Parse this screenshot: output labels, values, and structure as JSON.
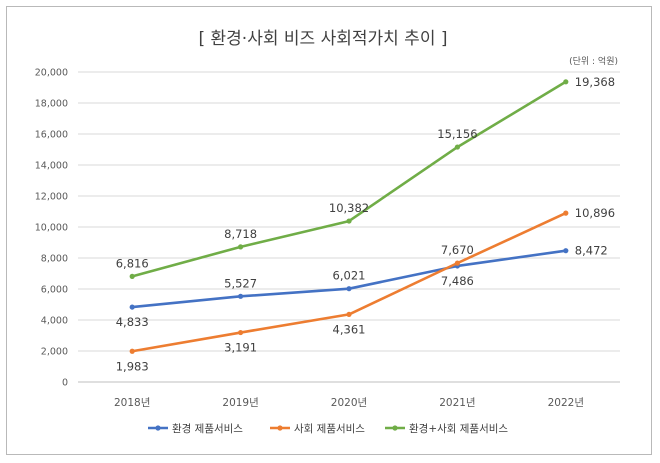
{
  "chart_data": {
    "type": "line",
    "title": "[ 환경·사회 비즈 사회적가치 추이 ]",
    "unit_note": "(단위 : 억원)",
    "categories": [
      "2018년",
      "2019년",
      "2020년",
      "2021년",
      "2022년"
    ],
    "ylim": [
      0,
      20000
    ],
    "yticks": [
      0,
      2000,
      4000,
      6000,
      8000,
      10000,
      12000,
      14000,
      16000,
      18000,
      20000
    ],
    "ytick_labels": [
      "0",
      "2,000",
      "4,000",
      "6,000",
      "8,000",
      "10,000",
      "12,000",
      "14,000",
      "16,000",
      "18,000",
      "20,000"
    ],
    "grid": true,
    "legend_position": "bottom",
    "series": [
      {
        "name": "환경 제품서비스",
        "color": "#4472c4",
        "values": [
          4833,
          5527,
          6021,
          7486,
          8472
        ],
        "labels": [
          "4,833",
          "5,527",
          "6,021",
          "7,486",
          "8,472"
        ],
        "label_pos": [
          "below",
          "above",
          "above",
          "below",
          "right"
        ]
      },
      {
        "name": "사회 제품서비스",
        "color": "#ed7d31",
        "values": [
          1983,
          3191,
          4361,
          7670,
          10896
        ],
        "labels": [
          "1,983",
          "3,191",
          "4,361",
          "7,670",
          "10,896"
        ],
        "label_pos": [
          "below",
          "below",
          "below",
          "above",
          "right"
        ]
      },
      {
        "name": "환경+사회 제품서비스",
        "color": "#70ad47",
        "values": [
          6816,
          8718,
          10382,
          15156,
          19368
        ],
        "labels": [
          "6,816",
          "8,718",
          "10,382",
          "15,156",
          "19,368"
        ],
        "label_pos": [
          "above",
          "above",
          "above",
          "above",
          "right"
        ]
      }
    ]
  }
}
